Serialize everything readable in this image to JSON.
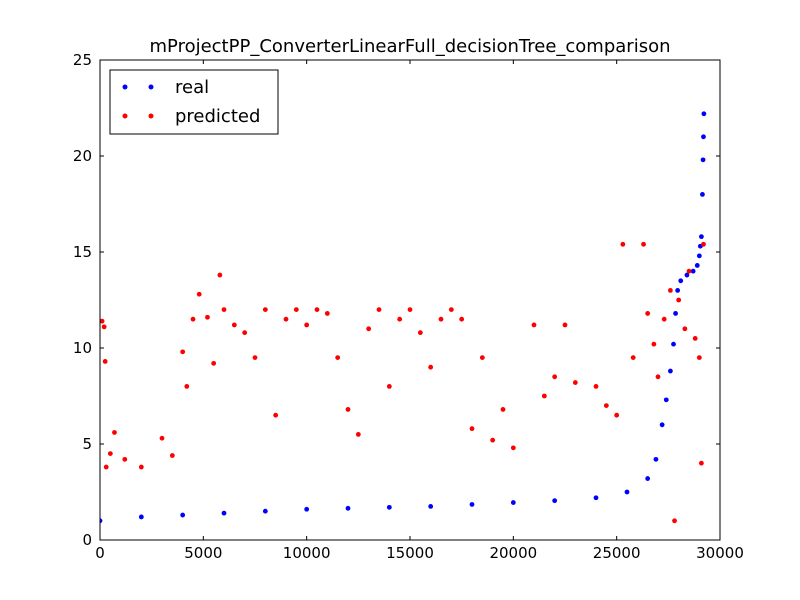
{
  "chart_data": {
    "type": "scatter",
    "title": "mProjectPP_ConverterLinearFull_decisionTree_comparison",
    "xlabel": "",
    "ylabel": "",
    "xlim": [
      0,
      30000
    ],
    "ylim": [
      0,
      25
    ],
    "x_ticks": [
      "0",
      "5000",
      "10000",
      "15000",
      "20000",
      "25000",
      "30000"
    ],
    "y_ticks": [
      "0",
      "5",
      "10",
      "15",
      "20",
      "25"
    ],
    "grid": false,
    "legend_position": "top-left",
    "series": [
      {
        "name": "real",
        "color": "#0000ff",
        "points": [
          [
            0,
            1.0
          ],
          [
            2000,
            1.2
          ],
          [
            4000,
            1.3
          ],
          [
            6000,
            1.4
          ],
          [
            8000,
            1.5
          ],
          [
            10000,
            1.6
          ],
          [
            12000,
            1.65
          ],
          [
            14000,
            1.7
          ],
          [
            16000,
            1.75
          ],
          [
            18000,
            1.85
          ],
          [
            20000,
            1.95
          ],
          [
            22000,
            2.05
          ],
          [
            24000,
            2.2
          ],
          [
            25500,
            2.5
          ],
          [
            26500,
            3.2
          ],
          [
            26900,
            4.2
          ],
          [
            27200,
            6.0
          ],
          [
            27400,
            7.3
          ],
          [
            27600,
            8.8
          ],
          [
            27750,
            10.2
          ],
          [
            27850,
            11.8
          ],
          [
            27950,
            13.0
          ],
          [
            28100,
            13.5
          ],
          [
            28400,
            13.8
          ],
          [
            28700,
            14.0
          ],
          [
            28900,
            14.3
          ],
          [
            29000,
            14.8
          ],
          [
            29050,
            15.3
          ],
          [
            29100,
            15.8
          ],
          [
            29150,
            18.0
          ],
          [
            29180,
            19.8
          ],
          [
            29200,
            21.0
          ],
          [
            29220,
            22.2
          ]
        ]
      },
      {
        "name": "predicted",
        "color": "#ff0000",
        "points": [
          [
            100,
            11.4
          ],
          [
            200,
            11.1
          ],
          [
            250,
            9.3
          ],
          [
            300,
            3.8
          ],
          [
            500,
            4.5
          ],
          [
            700,
            5.6
          ],
          [
            1200,
            4.2
          ],
          [
            2000,
            3.8
          ],
          [
            3000,
            5.3
          ],
          [
            3500,
            4.4
          ],
          [
            4000,
            9.8
          ],
          [
            4200,
            8.0
          ],
          [
            4500,
            11.5
          ],
          [
            4800,
            12.8
          ],
          [
            5200,
            11.6
          ],
          [
            5500,
            9.2
          ],
          [
            5800,
            13.8
          ],
          [
            6000,
            12.0
          ],
          [
            6500,
            11.2
          ],
          [
            7000,
            10.8
          ],
          [
            7500,
            9.5
          ],
          [
            8000,
            12.0
          ],
          [
            8500,
            6.5
          ],
          [
            9000,
            11.5
          ],
          [
            9500,
            12.0
          ],
          [
            10000,
            11.2
          ],
          [
            10500,
            12.0
          ],
          [
            11000,
            11.8
          ],
          [
            11500,
            9.5
          ],
          [
            12000,
            6.8
          ],
          [
            12500,
            5.5
          ],
          [
            13000,
            11.0
          ],
          [
            13500,
            12.0
          ],
          [
            14000,
            8.0
          ],
          [
            14500,
            11.5
          ],
          [
            15000,
            12.0
          ],
          [
            15500,
            10.8
          ],
          [
            16000,
            9.0
          ],
          [
            16500,
            11.5
          ],
          [
            17000,
            12.0
          ],
          [
            17500,
            11.5
          ],
          [
            18000,
            5.8
          ],
          [
            18500,
            9.5
          ],
          [
            19000,
            5.2
          ],
          [
            19500,
            6.8
          ],
          [
            20000,
            4.8
          ],
          [
            21000,
            11.2
          ],
          [
            21500,
            7.5
          ],
          [
            22000,
            8.5
          ],
          [
            22500,
            11.2
          ],
          [
            23000,
            8.2
          ],
          [
            24000,
            8.0
          ],
          [
            24500,
            7.0
          ],
          [
            25000,
            6.5
          ],
          [
            25300,
            15.4
          ],
          [
            25800,
            9.5
          ],
          [
            26300,
            15.4
          ],
          [
            26500,
            11.8
          ],
          [
            26800,
            10.2
          ],
          [
            27000,
            8.5
          ],
          [
            27300,
            11.5
          ],
          [
            27600,
            13.0
          ],
          [
            27800,
            1.0
          ],
          [
            28000,
            12.5
          ],
          [
            28300,
            11.0
          ],
          [
            28500,
            14.0
          ],
          [
            28800,
            10.5
          ],
          [
            29000,
            9.5
          ],
          [
            29100,
            4.0
          ],
          [
            29200,
            15.4
          ]
        ]
      }
    ]
  }
}
